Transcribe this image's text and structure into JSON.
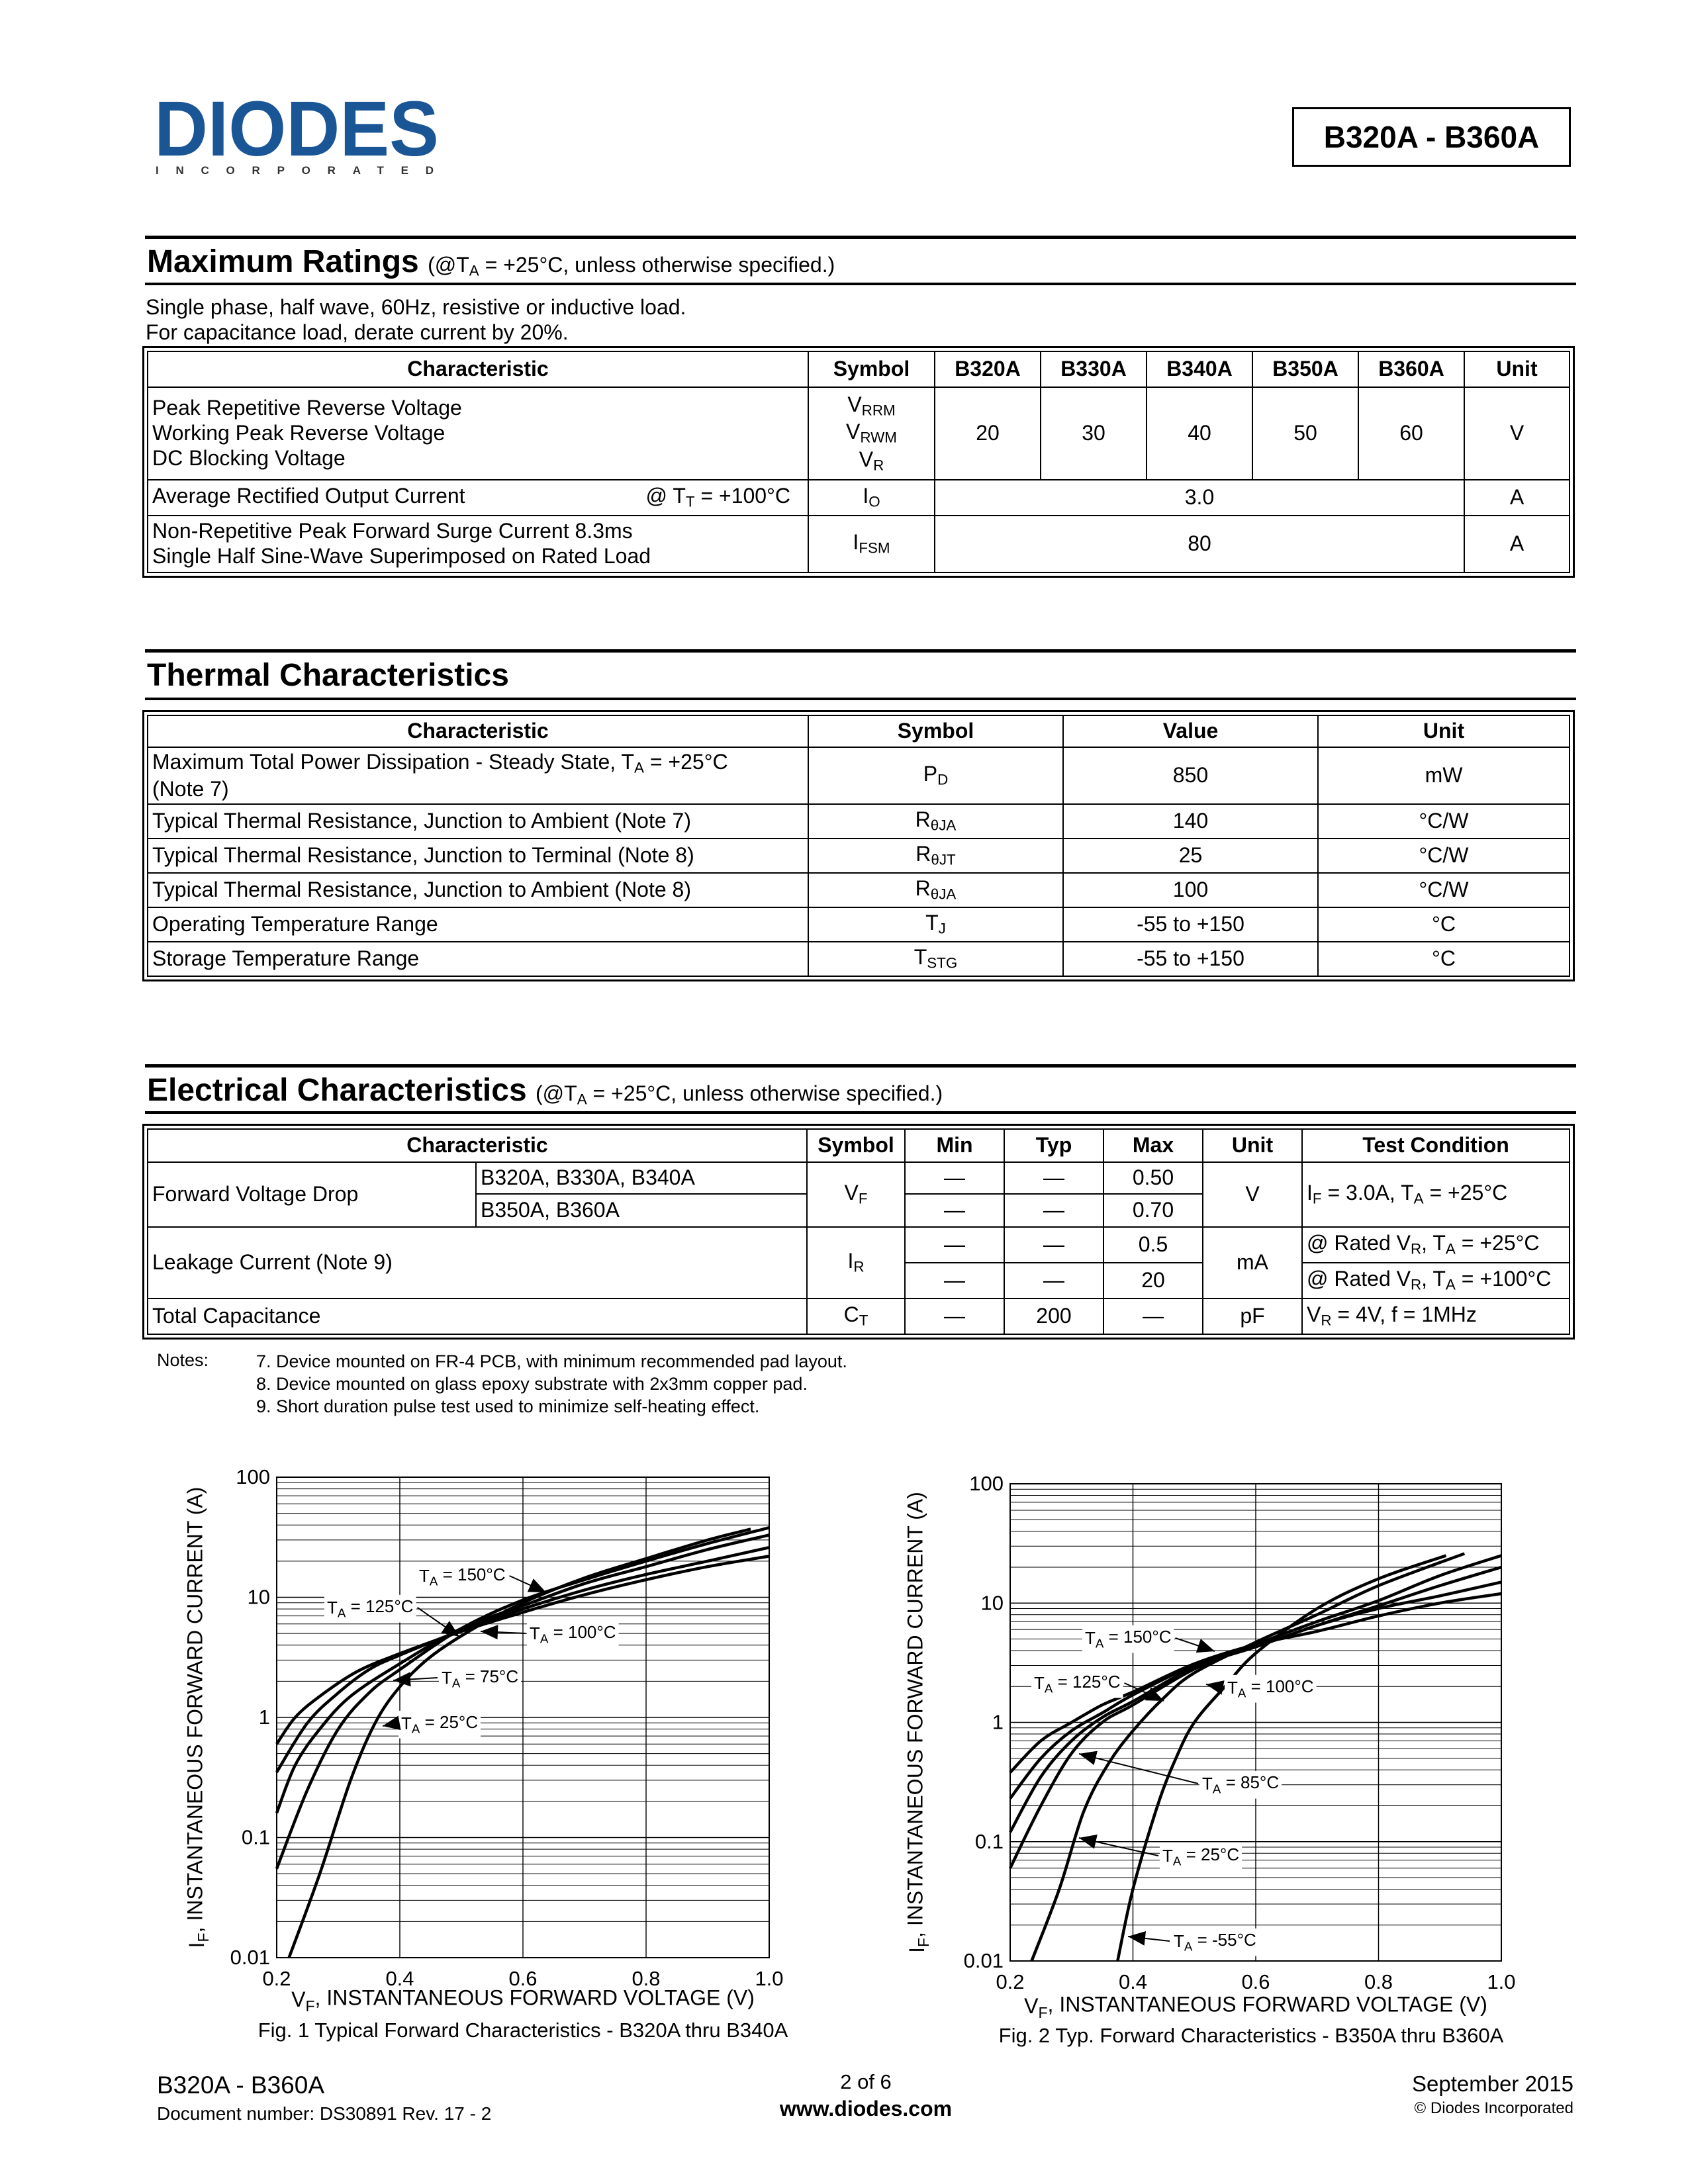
{
  "header": {
    "logo_text": "DIODES",
    "logo_sub": "INCORPORATED",
    "logo_color": "#1a5596",
    "part_range": "B320A - B360A"
  },
  "max_ratings": {
    "title": "Maximum Ratings",
    "cond": [
      {
        "t": "(@T"
      },
      {
        "sub": "A"
      },
      {
        "t": " = +25°C, unless otherwise specified.)"
      }
    ],
    "note1": "Single phase, half wave, 60Hz, resistive or inductive load.",
    "note2": "For capacitance load, derate current by 20%.",
    "headers": [
      "Characteristic",
      "Symbol",
      "B320A",
      "B330A",
      "B340A",
      "B350A",
      "B360A",
      "Unit"
    ],
    "rows": [
      {
        "chars": [
          "Peak Repetitive Reverse Voltage",
          "Working Peak Reverse Voltage",
          "DC Blocking Voltage"
        ],
        "symbols": [
          [
            {
              "t": "V"
            },
            {
              "sub": "RRM"
            }
          ],
          [
            {
              "t": "V"
            },
            {
              "sub": "RWM"
            }
          ],
          [
            {
              "t": "V"
            },
            {
              "sub": "R"
            }
          ]
        ],
        "values": [
          "20",
          "30",
          "40",
          "50",
          "60"
        ],
        "unit": "V"
      },
      {
        "char": "Average Rectified Output Current",
        "cond": [
          {
            "t": "@ T"
          },
          {
            "sub": "T"
          },
          {
            "t": " = +100°C"
          }
        ],
        "symbol": [
          {
            "t": "I"
          },
          {
            "sub": "O"
          }
        ],
        "value": "3.0",
        "unit": "A"
      },
      {
        "chars": [
          "Non-Repetitive Peak Forward Surge Current 8.3ms",
          "Single Half Sine-Wave Superimposed on Rated Load"
        ],
        "symbol": [
          {
            "t": "I"
          },
          {
            "sub": "FSM"
          }
        ],
        "value": "80",
        "unit": "A"
      }
    ]
  },
  "thermal": {
    "title": "Thermal Characteristics",
    "headers": [
      "Characteristic",
      "Symbol",
      "Value",
      "Unit"
    ],
    "rows": [
      {
        "char": [
          {
            "t": "Maximum Total Power Dissipation  - Steady State, T"
          },
          {
            "sub": "A"
          },
          {
            "t": " = +25°C"
          }
        ],
        "char2": "(Note 7)",
        "symbol": [
          {
            "t": "P"
          },
          {
            "sub": "D"
          }
        ],
        "value": "850",
        "unit": "mW"
      },
      {
        "char": [
          {
            "t": "Typical Thermal Resistance, Junction to Ambient (Note 7)"
          }
        ],
        "symbol": [
          {
            "t": "R"
          },
          {
            "sub": "θJA"
          }
        ],
        "value": "140",
        "unit": "°C/W"
      },
      {
        "char": [
          {
            "t": "Typical Thermal Resistance, Junction to Terminal (Note 8)"
          }
        ],
        "symbol": [
          {
            "t": "R"
          },
          {
            "sub": "θJT"
          }
        ],
        "value": "25",
        "unit": "°C/W"
      },
      {
        "char": [
          {
            "t": "Typical Thermal Resistance, Junction to Ambient (Note 8)"
          }
        ],
        "symbol": [
          {
            "t": "R"
          },
          {
            "sub": "θJA"
          }
        ],
        "value": "100",
        "unit": "°C/W"
      },
      {
        "char": [
          {
            "t": "Operating Temperature Range"
          }
        ],
        "symbol": [
          {
            "t": "T"
          },
          {
            "sub": "J"
          }
        ],
        "value": "-55 to +150",
        "unit": "°C"
      },
      {
        "char": [
          {
            "t": "Storage Temperature Range"
          }
        ],
        "symbol": [
          {
            "t": "T"
          },
          {
            "sub": "STG"
          }
        ],
        "value": "-55 to +150",
        "unit": "°C"
      }
    ]
  },
  "electrical": {
    "title": "Electrical Characteristics",
    "cond": [
      {
        "t": "(@T"
      },
      {
        "sub": "A"
      },
      {
        "t": " = +25°C, unless otherwise specified.)"
      }
    ],
    "headers": [
      "Characteristic",
      "Symbol",
      "Min",
      "Typ",
      "Max",
      "Unit",
      "Test Condition"
    ],
    "vf": {
      "char": "Forward Voltage Drop",
      "variants": [
        "B320A, B330A, B340A",
        "B350A, B360A"
      ],
      "symbol": [
        {
          "t": "V"
        },
        {
          "sub": "F"
        }
      ],
      "min": [
        "—",
        "—"
      ],
      "typ": [
        "—",
        "—"
      ],
      "max": [
        "0.50",
        "0.70"
      ],
      "unit": "V",
      "test": [
        {
          "t": "I"
        },
        {
          "sub": "F"
        },
        {
          "t": " = 3.0A, T"
        },
        {
          "sub": "A"
        },
        {
          "t": " = +25°C"
        }
      ]
    },
    "ir": {
      "char": "Leakage Current (Note 9)",
      "symbol": [
        {
          "t": "I"
        },
        {
          "sub": "R"
        }
      ],
      "min": [
        "—",
        "—"
      ],
      "typ": [
        "—",
        "—"
      ],
      "max": [
        "0.5",
        "20"
      ],
      "unit": "mA",
      "tests": [
        [
          {
            "t": "@ Rated V"
          },
          {
            "sub": "R"
          },
          {
            "t": ", T"
          },
          {
            "sub": "A"
          },
          {
            "t": " = +25°C"
          }
        ],
        [
          {
            "t": "@ Rated V"
          },
          {
            "sub": "R"
          },
          {
            "t": ", T"
          },
          {
            "sub": "A"
          },
          {
            "t": " = +100°C"
          }
        ]
      ]
    },
    "ct": {
      "char": "Total Capacitance",
      "symbol": [
        {
          "t": "C"
        },
        {
          "sub": "T"
        }
      ],
      "min": "—",
      "typ": "200",
      "max": "—",
      "unit": "pF",
      "test": [
        {
          "t": "V"
        },
        {
          "sub": "R"
        },
        {
          "t": " = 4V, f = 1MHz"
        }
      ]
    }
  },
  "notes": {
    "label": "Notes:",
    "items": [
      "7. Device mounted on FR-4 PCB, with minimum recommended pad layout.",
      "8. Device mounted on glass epoxy substrate with 2x3mm copper pad.",
      "9. Short duration pulse test used to minimize self-heating effect."
    ]
  },
  "chart_data": [
    {
      "type": "line",
      "title": "Fig. 1  Typical Forward Characteristics - B320A thru B340A",
      "xlabel": [
        {
          "t": "V"
        },
        {
          "sub": "F"
        },
        {
          "t": ", INSTANTANEOUS FORWARD VOLTAGE (V)"
        }
      ],
      "ylabel": [
        {
          "t": "I"
        },
        {
          "sub": "F"
        },
        {
          "t": ", INSTANTANEOUS FORWARD CURRENT (A)"
        }
      ],
      "xlim": [
        0.2,
        1.0
      ],
      "ylim": [
        0.01,
        100
      ],
      "yscale": "log",
      "grid": true,
      "xticks": [
        "0.2",
        "0.4",
        "0.6",
        "0.8",
        "1.0"
      ],
      "yticks": [
        "100",
        "10",
        "1",
        "0.1",
        "0.01"
      ],
      "series": [
        {
          "name": [
            {
              "t": "T"
            },
            {
              "sub": "A"
            },
            {
              "t": " = 150°C"
            }
          ],
          "points": [
            [
              0.2,
              0.6
            ],
            [
              0.23,
              1
            ],
            [
              0.27,
              1.5
            ],
            [
              0.33,
              2.4
            ],
            [
              0.4,
              3.4
            ],
            [
              0.5,
              5.2
            ],
            [
              0.6,
              7.5
            ],
            [
              0.7,
              10.5
            ],
            [
              0.8,
              14
            ],
            [
              0.9,
              18
            ],
            [
              1.0,
              22
            ]
          ]
        },
        {
          "name": [
            {
              "t": "T"
            },
            {
              "sub": "A"
            },
            {
              "t": " = 125°C"
            }
          ],
          "points": [
            [
              0.2,
              0.35
            ],
            [
              0.25,
              0.9
            ],
            [
              0.3,
              1.6
            ],
            [
              0.35,
              2.5
            ],
            [
              0.4,
              3.3
            ],
            [
              0.5,
              5.3
            ],
            [
              0.6,
              8
            ],
            [
              0.7,
              11.5
            ],
            [
              0.8,
              15.5
            ],
            [
              0.9,
              20
            ],
            [
              1.0,
              26
            ]
          ]
        },
        {
          "name": [
            {
              "t": "T"
            },
            {
              "sub": "A"
            },
            {
              "t": " = 100°C"
            }
          ],
          "points": [
            [
              0.2,
              0.16
            ],
            [
              0.23,
              0.4
            ],
            [
              0.27,
              0.8
            ],
            [
              0.32,
              1.5
            ],
            [
              0.4,
              2.8
            ],
            [
              0.5,
              5.5
            ],
            [
              0.6,
              8.5
            ],
            [
              0.7,
              13
            ],
            [
              0.8,
              18
            ],
            [
              0.9,
              25
            ],
            [
              1.0,
              33
            ]
          ]
        },
        {
          "name": [
            {
              "t": "T"
            },
            {
              "sub": "A"
            },
            {
              "t": " = 75°C"
            }
          ],
          "points": [
            [
              0.2,
              0.055
            ],
            [
              0.25,
              0.25
            ],
            [
              0.3,
              0.8
            ],
            [
              0.35,
              1.6
            ],
            [
              0.4,
              2.5
            ],
            [
              0.5,
              5.5
            ],
            [
              0.6,
              9.5
            ],
            [
              0.7,
              14
            ],
            [
              0.8,
              20
            ],
            [
              0.9,
              28
            ],
            [
              1.0,
              38
            ]
          ]
        },
        {
          "name": [
            {
              "t": "T"
            },
            {
              "sub": "A"
            },
            {
              "t": " = 25°C"
            }
          ],
          "points": [
            [
              0.22,
              0.01
            ],
            [
              0.27,
              0.05
            ],
            [
              0.32,
              0.3
            ],
            [
              0.36,
              0.9
            ],
            [
              0.4,
              1.8
            ],
            [
              0.45,
              3.2
            ],
            [
              0.52,
              5.5
            ],
            [
              0.6,
              9
            ],
            [
              0.7,
              14.5
            ],
            [
              0.8,
              21
            ],
            [
              0.9,
              30
            ],
            [
              0.97,
              37
            ]
          ]
        }
      ]
    },
    {
      "type": "line",
      "title": "Fig. 2  Typ. Forward Characteristics - B350A thru B360A",
      "xlabel": [
        {
          "t": "V"
        },
        {
          "sub": "F"
        },
        {
          "t": ", INSTANTANEOUS FORWARD VOLTAGE (V)"
        }
      ],
      "ylabel": [
        {
          "t": "I"
        },
        {
          "sub": "F"
        },
        {
          "t": ", INSTANTANEOUS FORWARD CURRENT (A)"
        }
      ],
      "xlim": [
        0.2,
        1.0
      ],
      "ylim": [
        0.01,
        100
      ],
      "yscale": "log",
      "grid": true,
      "xticks": [
        "0.2",
        "0.4",
        "0.6",
        "0.8",
        "1.0"
      ],
      "yticks": [
        "100",
        "10",
        "1",
        "0.1",
        "0.01"
      ],
      "series": [
        {
          "name": [
            {
              "t": "T"
            },
            {
              "sub": "A"
            },
            {
              "t": " = 150°C"
            }
          ],
          "points": [
            [
              0.2,
              0.38
            ],
            [
              0.25,
              0.7
            ],
            [
              0.3,
              1
            ],
            [
              0.35,
              1.4
            ],
            [
              0.4,
              1.8
            ],
            [
              0.5,
              3.1
            ],
            [
              0.6,
              4.5
            ],
            [
              0.7,
              5.8
            ],
            [
              0.8,
              7.8
            ],
            [
              0.9,
              10
            ],
            [
              1.0,
              12
            ]
          ]
        },
        {
          "name": [
            {
              "t": "T"
            },
            {
              "sub": "A"
            },
            {
              "t": " = 125°C"
            }
          ],
          "points": [
            [
              0.2,
              0.23
            ],
            [
              0.25,
              0.5
            ],
            [
              0.3,
              0.85
            ],
            [
              0.35,
              1.2
            ],
            [
              0.4,
              1.7
            ],
            [
              0.5,
              3
            ],
            [
              0.6,
              4.3
            ],
            [
              0.7,
              6.5
            ],
            [
              0.8,
              9
            ],
            [
              0.9,
              11.5
            ],
            [
              1.0,
              15
            ]
          ]
        },
        {
          "name": [
            {
              "t": "T"
            },
            {
              "sub": "A"
            },
            {
              "t": " = 100°C"
            }
          ],
          "points": [
            [
              0.2,
              0.12
            ],
            [
              0.25,
              0.35
            ],
            [
              0.3,
              0.7
            ],
            [
              0.35,
              1.1
            ],
            [
              0.4,
              1.5
            ],
            [
              0.5,
              2.9
            ],
            [
              0.6,
              4.3
            ],
            [
              0.7,
              6.5
            ],
            [
              0.8,
              9.5
            ],
            [
              0.9,
              14
            ],
            [
              1.0,
              20
            ]
          ]
        },
        {
          "name": [
            {
              "t": "T"
            },
            {
              "sub": "A"
            },
            {
              "t": " = 85°C"
            }
          ],
          "points": [
            [
              0.2,
              0.06
            ],
            [
              0.25,
              0.2
            ],
            [
              0.3,
              0.55
            ],
            [
              0.35,
              1
            ],
            [
              0.4,
              1.4
            ],
            [
              0.5,
              2.8
            ],
            [
              0.6,
              4.5
            ],
            [
              0.7,
              7
            ],
            [
              0.8,
              10.5
            ],
            [
              0.9,
              17
            ],
            [
              1.0,
              25
            ]
          ]
        },
        {
          "name": [
            {
              "t": "T"
            },
            {
              "sub": "A"
            },
            {
              "t": " = 25°C"
            }
          ],
          "points": [
            [
              0.235,
              0.01
            ],
            [
              0.28,
              0.04
            ],
            [
              0.32,
              0.18
            ],
            [
              0.36,
              0.45
            ],
            [
              0.4,
              0.85
            ],
            [
              0.45,
              1.6
            ],
            [
              0.5,
              2.6
            ],
            [
              0.6,
              4.7
            ],
            [
              0.7,
              8
            ],
            [
              0.8,
              14
            ],
            [
              0.94,
              26
            ]
          ]
        },
        {
          "name": [
            {
              "t": "T"
            },
            {
              "sub": "A"
            },
            {
              "t": " = -55°C"
            }
          ],
          "points": [
            [
              0.375,
              0.01
            ],
            [
              0.4,
              0.04
            ],
            [
              0.44,
              0.2
            ],
            [
              0.47,
              0.5
            ],
            [
              0.5,
              1
            ],
            [
              0.55,
              2
            ],
            [
              0.6,
              3.8
            ],
            [
              0.7,
              9
            ],
            [
              0.8,
              16
            ],
            [
              0.91,
              25
            ]
          ]
        }
      ]
    }
  ],
  "footer": {
    "part": "B320A - B360A",
    "doc_number": "Document number: DS30891 Rev. 17 - 2",
    "page": "2 of 6",
    "website": "www.diodes.com",
    "date": "September 2015",
    "copyright": "© Diodes Incorporated"
  }
}
